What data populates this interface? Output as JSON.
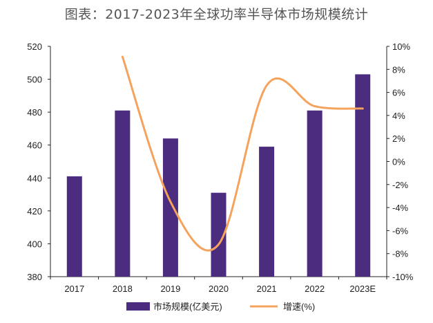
{
  "title": "图表：2017-2023年全球功率半导体市场规模统计",
  "chart_data": {
    "type": "bar",
    "title": "图表：2017-2023年全球功率半导体市场规模统计",
    "categories": [
      "2017",
      "2018",
      "2019",
      "2020",
      "2021",
      "2022",
      "2023E"
    ],
    "series": [
      {
        "name": "市场规模(亿美元)",
        "type": "bar",
        "axis": "left",
        "values": [
          441,
          481,
          464,
          431,
          459,
          481,
          503
        ]
      },
      {
        "name": "增速(%)",
        "type": "line",
        "axis": "right",
        "values": [
          null,
          9.1,
          -3.5,
          -7.2,
          6.6,
          4.8,
          4.6
        ]
      }
    ],
    "y_left": {
      "lim": [
        380,
        520
      ],
      "ticks": [
        "380",
        "400",
        "420",
        "440",
        "460",
        "480",
        "500",
        "520"
      ]
    },
    "y_right": {
      "lim": [
        -10,
        10
      ],
      "ticks": [
        "-10%",
        "-8%",
        "-6%",
        "-4%",
        "-2%",
        "0%",
        "2%",
        "4%",
        "6%",
        "8%",
        "10%"
      ]
    },
    "legend": {
      "position": "bottom",
      "items": [
        "市场规模(亿美元)",
        "增速(%)"
      ]
    },
    "colors": {
      "bar": "#4b2c7f",
      "line": "#f5a25d"
    },
    "grid": false
  }
}
